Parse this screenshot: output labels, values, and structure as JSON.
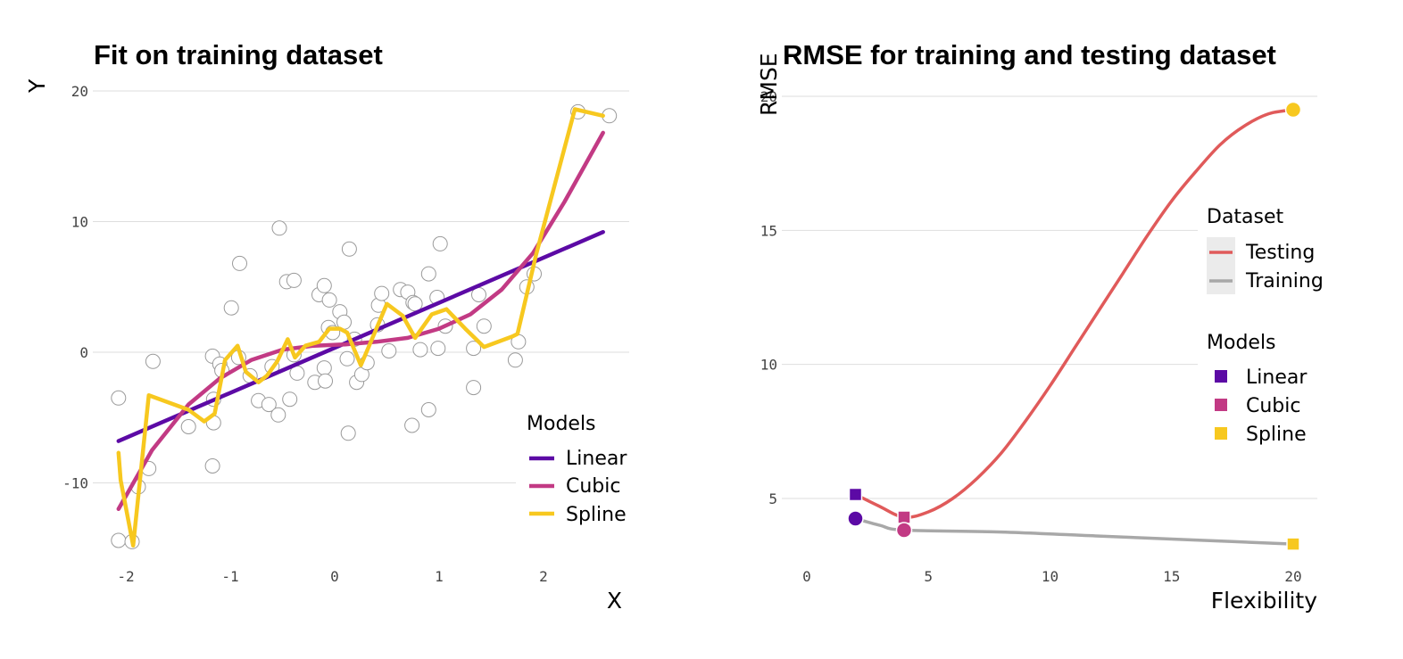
{
  "chart_data": [
    {
      "type": "scatter",
      "title": "Fit on training dataset",
      "xlabel": "X",
      "ylabel": "Y",
      "xlim": [
        -2.2,
        2.8
      ],
      "ylim": [
        -15.5,
        20.5
      ],
      "xticks": [
        -2,
        -1,
        0,
        1,
        2
      ],
      "xtick_labels": [
        "-2",
        "-1",
        "0",
        "1",
        "2"
      ],
      "yticks": [
        -10,
        0,
        10,
        20
      ],
      "ytick_labels": [
        "-10",
        "0",
        "10",
        "20"
      ],
      "grid": true,
      "legend": {
        "title": "Models",
        "position": "bottom-right",
        "entries": [
          "Linear",
          "Cubic",
          "Spline"
        ]
      },
      "points": [
        [
          -2.07,
          -3.5
        ],
        [
          -2.07,
          -14.4
        ],
        [
          -1.94,
          -14.5
        ],
        [
          -1.88,
          -10.3
        ],
        [
          -1.78,
          -8.9
        ],
        [
          -1.74,
          -0.7
        ],
        [
          -1.4,
          -5.7
        ],
        [
          -1.17,
          -8.7
        ],
        [
          -1.16,
          -5.4
        ],
        [
          -1.17,
          -0.3
        ],
        [
          -1.16,
          -3.6
        ],
        [
          -1.1,
          -0.9
        ],
        [
          -1.08,
          -1.4
        ],
        [
          -0.99,
          3.4
        ],
        [
          -0.91,
          6.8
        ],
        [
          -0.92,
          -0.4
        ],
        [
          -0.81,
          -1.8
        ],
        [
          -0.73,
          -3.7
        ],
        [
          -0.63,
          -4.0
        ],
        [
          -0.6,
          -1.1
        ],
        [
          -0.54,
          -4.8
        ],
        [
          -0.53,
          9.5
        ],
        [
          -0.46,
          5.4
        ],
        [
          -0.43,
          -3.6
        ],
        [
          -0.39,
          5.5
        ],
        [
          -0.39,
          -0.2
        ],
        [
          -0.36,
          -1.6
        ],
        [
          -0.19,
          -2.3
        ],
        [
          -0.15,
          4.4
        ],
        [
          -0.1,
          5.1
        ],
        [
          -0.1,
          -1.2
        ],
        [
          -0.09,
          -2.2
        ],
        [
          -0.06,
          1.9
        ],
        [
          -0.05,
          4.0
        ],
        [
          -0.02,
          1.5
        ],
        [
          0.05,
          3.1
        ],
        [
          0.09,
          2.3
        ],
        [
          0.12,
          -0.5
        ],
        [
          0.13,
          -6.2
        ],
        [
          0.14,
          7.9
        ],
        [
          0.19,
          1.0
        ],
        [
          0.21,
          -2.3
        ],
        [
          0.26,
          -1.7
        ],
        [
          0.31,
          -0.8
        ],
        [
          0.41,
          2.1
        ],
        [
          0.42,
          3.6
        ],
        [
          0.45,
          4.5
        ],
        [
          0.52,
          0.1
        ],
        [
          0.63,
          4.8
        ],
        [
          0.7,
          4.6
        ],
        [
          0.74,
          -5.6
        ],
        [
          0.75,
          3.8
        ],
        [
          0.77,
          3.7
        ],
        [
          0.82,
          0.2
        ],
        [
          0.9,
          -4.4
        ],
        [
          0.9,
          6.0
        ],
        [
          0.98,
          4.2
        ],
        [
          0.99,
          0.3
        ],
        [
          1.01,
          8.3
        ],
        [
          1.06,
          2.0
        ],
        [
          1.33,
          0.3
        ],
        [
          1.33,
          -2.7
        ],
        [
          1.38,
          4.4
        ],
        [
          1.43,
          2.0
        ],
        [
          1.73,
          -0.6
        ],
        [
          1.76,
          0.8
        ],
        [
          1.84,
          5.0
        ],
        [
          1.91,
          6.0
        ],
        [
          2.33,
          18.4
        ],
        [
          2.63,
          18.1
        ]
      ],
      "series": [
        {
          "name": "Linear",
          "color": "#5c0aa5",
          "x": [
            -2.07,
            2.57
          ],
          "y": [
            -6.8,
            9.2
          ]
        },
        {
          "name": "Cubic",
          "color": "#c23a84",
          "x": [
            -2.07,
            -1.75,
            -1.4,
            -1.1,
            -0.8,
            -0.5,
            -0.2,
            0.1,
            0.4,
            0.7,
            1.0,
            1.3,
            1.6,
            1.9,
            2.2,
            2.57
          ],
          "y": [
            -12.0,
            -7.5,
            -4.0,
            -2.0,
            -0.6,
            0.2,
            0.5,
            0.6,
            0.8,
            1.1,
            1.8,
            2.9,
            4.8,
            7.6,
            11.5,
            16.8
          ]
        },
        {
          "name": "Spline",
          "color": "#f7c81f",
          "x": [
            -2.07,
            -2.05,
            -1.93,
            -1.78,
            -1.4,
            -1.25,
            -1.15,
            -1.05,
            -0.93,
            -0.85,
            -0.73,
            -0.65,
            -0.55,
            -0.45,
            -0.38,
            -0.28,
            -0.15,
            -0.05,
            0.05,
            0.12,
            0.25,
            0.32,
            0.5,
            0.65,
            0.77,
            0.93,
            1.07,
            1.25,
            1.43,
            1.7,
            1.75,
            1.93,
            2.3,
            2.57
          ],
          "y": [
            -7.7,
            -9.8,
            -14.8,
            -3.3,
            -4.4,
            -5.3,
            -4.7,
            -0.6,
            0.5,
            -1.5,
            -2.3,
            -1.8,
            -0.7,
            1.0,
            -0.4,
            0.5,
            0.8,
            1.8,
            1.8,
            1.5,
            -1.0,
            0.3,
            3.7,
            2.8,
            1.1,
            2.9,
            3.3,
            1.8,
            0.4,
            1.2,
            1.4,
            7.5,
            18.6,
            18.1
          ]
        }
      ]
    },
    {
      "type": "line",
      "title": "RMSE for training and testing dataset",
      "xlabel": "Flexibility",
      "ylabel": "RMSE",
      "xlim": [
        0,
        20
      ],
      "ylim": [
        3.0,
        20.0
      ],
      "xticks": [
        0,
        5,
        10,
        15,
        20
      ],
      "xtick_labels": [
        "0",
        "5",
        "10",
        "15",
        "20"
      ],
      "yticks": [
        5,
        10,
        15,
        20
      ],
      "ytick_labels": [
        "5",
        "10",
        "15",
        "20"
      ],
      "grid": true,
      "legend_dataset": {
        "title": "Dataset",
        "position": "right",
        "entries": [
          {
            "name": "Testing",
            "color": "#e05a5a"
          },
          {
            "name": "Training",
            "color": "#a8a8a8"
          }
        ]
      },
      "legend_models": {
        "title": "Models",
        "position": "right",
        "entries": [
          {
            "name": "Linear",
            "color": "#5c0aa5"
          },
          {
            "name": "Cubic",
            "color": "#c23a84"
          },
          {
            "name": "Spline",
            "color": "#f7c81f"
          }
        ]
      },
      "series": [
        {
          "name": "Testing",
          "color": "#e05a5a",
          "x": [
            2,
            3,
            4,
            5,
            6,
            7,
            8,
            9,
            10,
            11,
            12,
            13,
            14,
            15,
            16,
            17,
            18,
            19,
            20
          ],
          "y": [
            5.15,
            4.7,
            4.3,
            4.5,
            5.0,
            5.75,
            6.7,
            7.9,
            9.2,
            10.6,
            12.0,
            13.4,
            14.8,
            16.1,
            17.2,
            18.2,
            18.9,
            19.35,
            19.5
          ]
        },
        {
          "name": "Training",
          "color": "#a8a8a8",
          "x": [
            2,
            3,
            4,
            8,
            12,
            16,
            20
          ],
          "y": [
            4.25,
            4.0,
            3.82,
            3.75,
            3.6,
            3.45,
            3.3
          ]
        }
      ],
      "markers": [
        {
          "dataset": "Testing",
          "model": "Linear",
          "x": 2,
          "y": 5.15
        },
        {
          "dataset": "Testing",
          "model": "Cubic",
          "x": 4,
          "y": 4.3
        },
        {
          "dataset": "Testing",
          "model": "Spline",
          "x": 20,
          "y": 19.5
        },
        {
          "dataset": "Training",
          "model": "Linear",
          "x": 2,
          "y": 4.25
        },
        {
          "dataset": "Training",
          "model": "Cubic",
          "x": 4,
          "y": 3.82
        },
        {
          "dataset": "Training",
          "model": "Spline",
          "x": 20,
          "y": 3.3
        }
      ]
    }
  ]
}
